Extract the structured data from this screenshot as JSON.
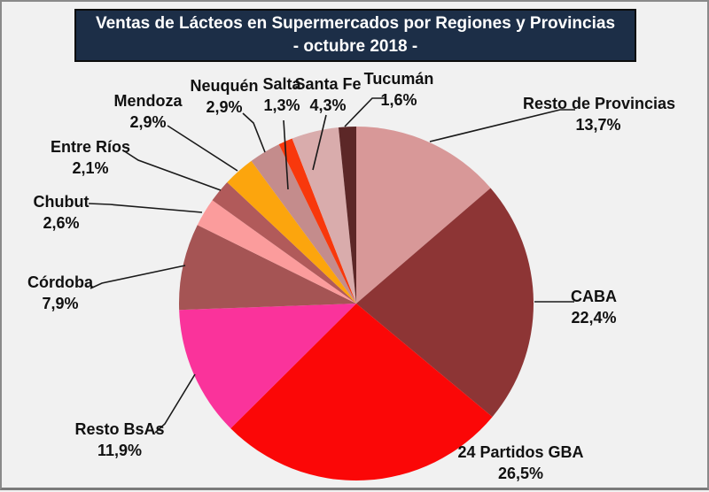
{
  "title": {
    "line1": "Ventas de Lácteos en Supermercados por Regiones y Provincias",
    "line2": "- octubre 2018 -"
  },
  "colors": {
    "background": "#f1f1f1",
    "frame_border": "#8a8a8a",
    "title_background": "#1c2e47",
    "title_border": "#0d0d0d",
    "title_text": "#ffffff",
    "label_text": "#111111",
    "leader_line": "#1a1a1a"
  },
  "chart_data": {
    "type": "pie",
    "title": "Ventas de Lácteos en Supermercados por Regiones y Provincias - octubre 2018 -",
    "start_angle_deg": 0,
    "direction": "clockwise",
    "value_format": "comma-decimal percent",
    "slices": [
      {
        "label": "Resto de Provincias",
        "value": 13.7,
        "pct_text": "13,7%",
        "color": "#d89898"
      },
      {
        "label": "CABA",
        "value": 22.4,
        "pct_text": "22,4%",
        "color": "#8d3535"
      },
      {
        "label": "24 Partidos GBA",
        "value": 26.5,
        "pct_text": "26,5%",
        "color": "#fb0707"
      },
      {
        "label": "Resto BsAs",
        "value": 11.9,
        "pct_text": "11,9%",
        "color": "#fa339b"
      },
      {
        "label": "Córdoba",
        "value": 7.9,
        "pct_text": "7,9%",
        "color": "#a55454"
      },
      {
        "label": "Chubut",
        "value": 2.6,
        "pct_text": "2,6%",
        "color": "#fb9c9c"
      },
      {
        "label": "Entre Ríos",
        "value": 2.1,
        "pct_text": "2,1%",
        "color": "#b15a5a"
      },
      {
        "label": "Mendoza",
        "value": 2.9,
        "pct_text": "2,9%",
        "color": "#fca50d"
      },
      {
        "label": "Neuquén",
        "value": 2.9,
        "pct_text": "2,9%",
        "color": "#c48c8c"
      },
      {
        "label": "Salta",
        "value": 1.3,
        "pct_text": "1,3%",
        "color": "#f8380c"
      },
      {
        "label": "Santa Fe",
        "value": 4.3,
        "pct_text": "4,3%",
        "color": "#d9acac"
      },
      {
        "label": "Tucumán",
        "value": 1.6,
        "pct_text": "1,6%",
        "color": "#5c2727"
      }
    ]
  }
}
